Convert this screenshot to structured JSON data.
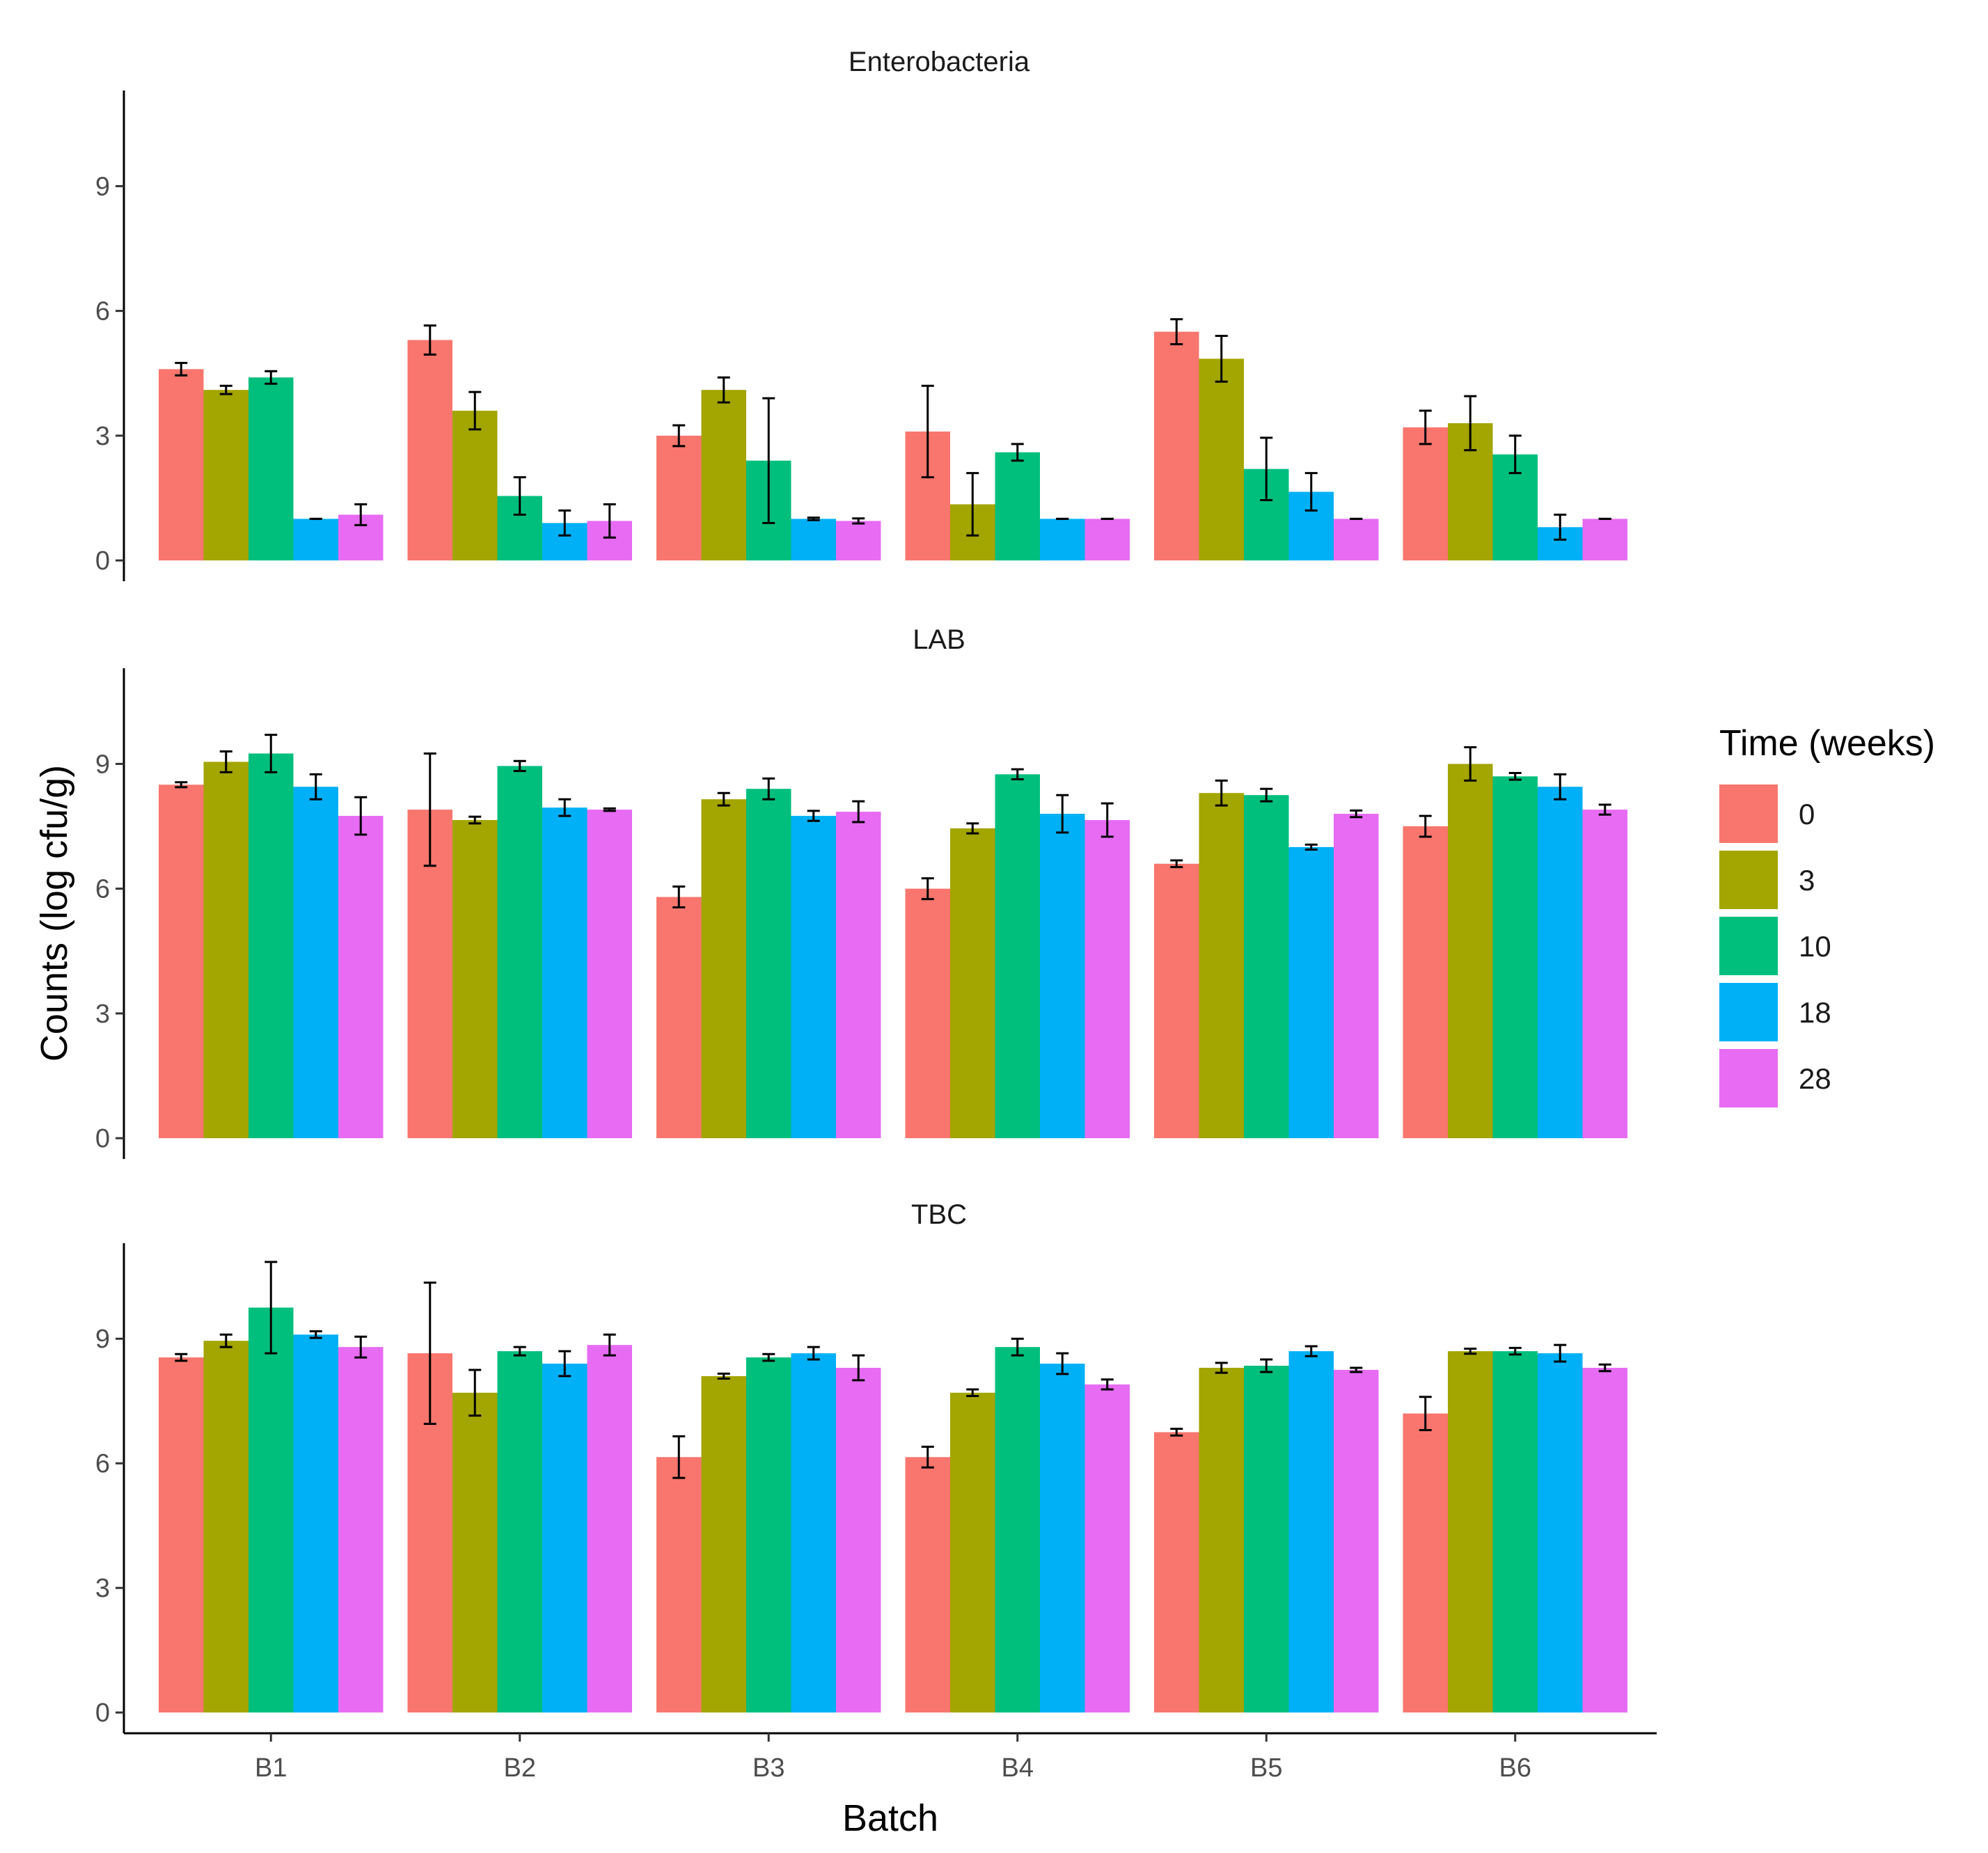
{
  "chart_data": {
    "type": "bar",
    "xlabel": "Batch",
    "ylabel": "Counts (log cfu/g)",
    "categories": [
      "B1",
      "B2",
      "B3",
      "B4",
      "B5",
      "B6"
    ],
    "y_ticks": [
      0,
      3,
      6,
      9
    ],
    "ylim": [
      -0.5,
      11.3
    ],
    "grid": false,
    "legend": {
      "title": "Time (weeks)",
      "placement": "right",
      "entries": [
        "0",
        "3",
        "10",
        "18",
        "28"
      ]
    },
    "colors": {
      "0": "#F8766D",
      "3": "#A3A500",
      "10": "#00BF7D",
      "18": "#00B0F6",
      "28": "#E76BF3"
    },
    "facets": [
      {
        "title": "Enterobacteria",
        "series": [
          {
            "name": "0",
            "values": [
              4.6,
              5.3,
              3.0,
              3.1,
              5.5,
              3.2
            ],
            "err": [
              0.15,
              0.35,
              0.25,
              1.1,
              0.3,
              0.4
            ]
          },
          {
            "name": "3",
            "values": [
              4.1,
              3.6,
              4.1,
              1.35,
              4.85,
              3.3
            ],
            "err": [
              0.1,
              0.45,
              0.3,
              0.75,
              0.55,
              0.65
            ]
          },
          {
            "name": "10",
            "values": [
              4.4,
              1.55,
              2.4,
              2.6,
              2.2,
              2.55
            ],
            "err": [
              0.15,
              0.45,
              1.5,
              0.2,
              0.75,
              0.45
            ]
          },
          {
            "name": "18",
            "values": [
              1.0,
              0.9,
              1.0,
              1.0,
              1.65,
              0.8
            ],
            "err": [
              0.0,
              0.3,
              0.03,
              0.0,
              0.45,
              0.3
            ]
          },
          {
            "name": "28",
            "values": [
              1.1,
              0.95,
              0.95,
              1.0,
              1.0,
              1.0
            ],
            "err": [
              0.25,
              0.4,
              0.06,
              0.0,
              0.0,
              0.0
            ]
          }
        ]
      },
      {
        "title": "LAB",
        "series": [
          {
            "name": "0",
            "values": [
              8.5,
              7.9,
              5.8,
              6.0,
              6.6,
              7.5
            ],
            "err": [
              0.06,
              1.35,
              0.25,
              0.25,
              0.08,
              0.25
            ]
          },
          {
            "name": "3",
            "values": [
              9.05,
              7.65,
              8.15,
              7.45,
              8.3,
              9.0
            ],
            "err": [
              0.25,
              0.08,
              0.15,
              0.12,
              0.3,
              0.4
            ]
          },
          {
            "name": "10",
            "values": [
              9.25,
              8.95,
              8.4,
              8.75,
              8.25,
              8.7
            ],
            "err": [
              0.45,
              0.12,
              0.25,
              0.12,
              0.15,
              0.08
            ]
          },
          {
            "name": "18",
            "values": [
              8.45,
              7.95,
              7.75,
              7.8,
              7.0,
              8.45
            ],
            "err": [
              0.3,
              0.2,
              0.12,
              0.45,
              0.06,
              0.3
            ]
          },
          {
            "name": "28",
            "values": [
              7.75,
              7.9,
              7.85,
              7.65,
              7.8,
              7.9
            ],
            "err": [
              0.45,
              0.03,
              0.25,
              0.4,
              0.08,
              0.12
            ]
          }
        ]
      },
      {
        "title": "TBC",
        "series": [
          {
            "name": "0",
            "values": [
              8.55,
              8.65,
              6.15,
              6.15,
              6.75,
              7.2
            ],
            "err": [
              0.08,
              1.7,
              0.5,
              0.25,
              0.08,
              0.4
            ]
          },
          {
            "name": "3",
            "values": [
              8.95,
              7.7,
              8.1,
              7.7,
              8.3,
              8.7
            ],
            "err": [
              0.15,
              0.55,
              0.06,
              0.08,
              0.12,
              0.06
            ]
          },
          {
            "name": "10",
            "values": [
              9.75,
              8.7,
              8.55,
              8.8,
              8.35,
              8.7
            ],
            "err": [
              1.1,
              0.1,
              0.08,
              0.2,
              0.15,
              0.08
            ]
          },
          {
            "name": "18",
            "values": [
              9.1,
              8.4,
              8.65,
              8.4,
              8.7,
              8.65
            ],
            "err": [
              0.08,
              0.3,
              0.15,
              0.25,
              0.12,
              0.2
            ]
          },
          {
            "name": "28",
            "values": [
              8.8,
              8.85,
              8.3,
              7.9,
              8.25,
              8.3
            ],
            "err": [
              0.25,
              0.25,
              0.3,
              0.12,
              0.05,
              0.08
            ]
          }
        ]
      }
    ]
  }
}
